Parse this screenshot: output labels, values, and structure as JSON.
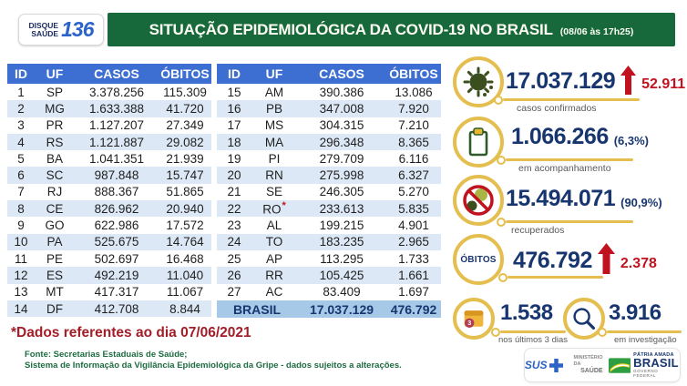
{
  "colors": {
    "banner_green": "#17693B",
    "table_header_blue": "#3D6ED1",
    "row_alt_blue": "#DCE8F5",
    "total_row_blue": "#A6C9E8",
    "number_navy": "#17356F",
    "accent_red": "#C0131F",
    "gold": "#E4BE4E",
    "footnote_red": "#A21D27",
    "source_green": "#1D6B40"
  },
  "header": {
    "logo": {
      "line1": "DISQUE",
      "line2": "SAÚDE",
      "number": "136"
    },
    "title": "SITUAÇÃO EPIDEMIOLÓGICA DA COVID-19 NO BRASIL",
    "timestamp": "(08/06 às 17h25)"
  },
  "table": {
    "columns": [
      "ID",
      "UF",
      "CASOS",
      "ÓBITOS"
    ],
    "left_rows": [
      {
        "id": "1",
        "uf": "SP",
        "casos": "3.378.256",
        "obitos": "115.309"
      },
      {
        "id": "2",
        "uf": "MG",
        "casos": "1.633.388",
        "obitos": "41.720"
      },
      {
        "id": "3",
        "uf": "PR",
        "casos": "1.127.207",
        "obitos": "27.349"
      },
      {
        "id": "4",
        "uf": "RS",
        "casos": "1.121.887",
        "obitos": "29.082"
      },
      {
        "id": "5",
        "uf": "BA",
        "casos": "1.041.351",
        "obitos": "21.939"
      },
      {
        "id": "6",
        "uf": "SC",
        "casos": "987.848",
        "obitos": "15.747"
      },
      {
        "id": "7",
        "uf": "RJ",
        "casos": "888.367",
        "obitos": "51.865"
      },
      {
        "id": "8",
        "uf": "CE",
        "casos": "826.962",
        "obitos": "20.940"
      },
      {
        "id": "9",
        "uf": "GO",
        "casos": "622.986",
        "obitos": "17.572"
      },
      {
        "id": "10",
        "uf": "PA",
        "casos": "525.675",
        "obitos": "14.764"
      },
      {
        "id": "11",
        "uf": "PE",
        "casos": "502.697",
        "obitos": "16.468"
      },
      {
        "id": "12",
        "uf": "ES",
        "casos": "492.219",
        "obitos": "11.040"
      },
      {
        "id": "13",
        "uf": "MT",
        "casos": "417.317",
        "obitos": "11.067"
      },
      {
        "id": "14",
        "uf": "DF",
        "casos": "412.708",
        "obitos": "8.844"
      }
    ],
    "right_rows": [
      {
        "id": "15",
        "uf": "AM",
        "casos": "390.386",
        "obitos": "13.086"
      },
      {
        "id": "16",
        "uf": "PB",
        "casos": "347.008",
        "obitos": "7.920"
      },
      {
        "id": "17",
        "uf": "MS",
        "casos": "304.315",
        "obitos": "7.210"
      },
      {
        "id": "18",
        "uf": "MA",
        "casos": "296.348",
        "obitos": "8.365"
      },
      {
        "id": "19",
        "uf": "PI",
        "casos": "279.709",
        "obitos": "6.116"
      },
      {
        "id": "20",
        "uf": "RN",
        "casos": "275.998",
        "obitos": "6.327"
      },
      {
        "id": "21",
        "uf": "SE",
        "casos": "246.305",
        "obitos": "5.270"
      },
      {
        "id": "22",
        "uf": "RO",
        "note": "*",
        "casos": "233.613",
        "obitos": "5.835"
      },
      {
        "id": "23",
        "uf": "AL",
        "casos": "199.215",
        "obitos": "4.901"
      },
      {
        "id": "24",
        "uf": "TO",
        "casos": "183.235",
        "obitos": "2.965"
      },
      {
        "id": "25",
        "uf": "AP",
        "casos": "113.295",
        "obitos": "1.733"
      },
      {
        "id": "26",
        "uf": "RR",
        "casos": "105.425",
        "obitos": "1.661"
      },
      {
        "id": "27",
        "uf": "AC",
        "casos": "83.409",
        "obitos": "1.697"
      }
    ],
    "total": {
      "label": "BRASIL",
      "casos": "17.037.129",
      "obitos": "476.792"
    }
  },
  "stats": {
    "confirmed": {
      "value": "17.037.129",
      "delta": "52.911",
      "label": "casos confirmados"
    },
    "monitoring": {
      "value": "1.066.266",
      "pct": "(6,3%)",
      "label": "em acompanhamento"
    },
    "recovered": {
      "value": "15.494.071",
      "pct": "(90,9%)",
      "label": "recuperados"
    },
    "deaths": {
      "icon_label": "ÓBITOS",
      "value": "476.792",
      "delta": "2.378"
    },
    "last3days": {
      "value": "1.538",
      "label": "nos últimos 3 dias",
      "badge": "3"
    },
    "investigation": {
      "value": "3.916",
      "label": "em investigação"
    }
  },
  "footnotes": {
    "data_note": "*Dados referentes ao dia 07/06/2021",
    "source_line1": "Fonte: Secretarias Estaduais de Saúde;",
    "source_line2": "Sistema de Informação da Vigilância Epidemiológica da Gripe - dados sujeitos a alterações."
  },
  "logos": {
    "sus": "SUS",
    "ministry_line1": "MINISTÉRIO DA",
    "ministry_line2": "SAÚDE",
    "brand_top": "PÁTRIA AMADA",
    "brand_main": "BRASIL",
    "brand_bottom": "GOVERNO FEDERAL"
  },
  "chart_data": {
    "type": "table",
    "title": "SITUAÇÃO EPIDEMIOLÓGICA DA COVID-19 NO BRASIL (08/06 às 17h25)",
    "columns": [
      "ID",
      "UF",
      "CASOS",
      "ÓBITOS"
    ],
    "rows": [
      [
        1,
        "SP",
        3378256,
        115309
      ],
      [
        2,
        "MG",
        1633388,
        41720
      ],
      [
        3,
        "PR",
        1127207,
        27349
      ],
      [
        4,
        "RS",
        1121887,
        29082
      ],
      [
        5,
        "BA",
        1041351,
        21939
      ],
      [
        6,
        "SC",
        987848,
        15747
      ],
      [
        7,
        "RJ",
        888367,
        51865
      ],
      [
        8,
        "CE",
        826962,
        20940
      ],
      [
        9,
        "GO",
        622986,
        17572
      ],
      [
        10,
        "PA",
        525675,
        14764
      ],
      [
        11,
        "PE",
        502697,
        16468
      ],
      [
        12,
        "ES",
        492219,
        11040
      ],
      [
        13,
        "MT",
        417317,
        11067
      ],
      [
        14,
        "DF",
        412708,
        8844
      ],
      [
        15,
        "AM",
        390386,
        13086
      ],
      [
        16,
        "PB",
        347008,
        7920
      ],
      [
        17,
        "MS",
        304315,
        7210
      ],
      [
        18,
        "MA",
        296348,
        8365
      ],
      [
        19,
        "PI",
        279709,
        6116
      ],
      [
        20,
        "RN",
        275998,
        6327
      ],
      [
        21,
        "SE",
        246305,
        5270
      ],
      [
        22,
        "RO",
        233613,
        5835
      ],
      [
        23,
        "AL",
        199215,
        4901
      ],
      [
        24,
        "TO",
        183235,
        2965
      ],
      [
        25,
        "AP",
        113295,
        1733
      ],
      [
        26,
        "RR",
        105425,
        1661
      ],
      [
        27,
        "AC",
        83409,
        1697
      ]
    ],
    "total": {
      "uf": "BRASIL",
      "casos": 17037129,
      "obitos": 476792
    },
    "indicators": {
      "casos_confirmados": 17037129,
      "novos_casos": 52911,
      "em_acompanhamento": 1066266,
      "em_acompanhamento_pct": 6.3,
      "recuperados": 15494071,
      "recuperados_pct": 90.9,
      "obitos": 476792,
      "novos_obitos": 2378,
      "obitos_ultimos_3_dias": 1538,
      "em_investigacao": 3916
    }
  }
}
